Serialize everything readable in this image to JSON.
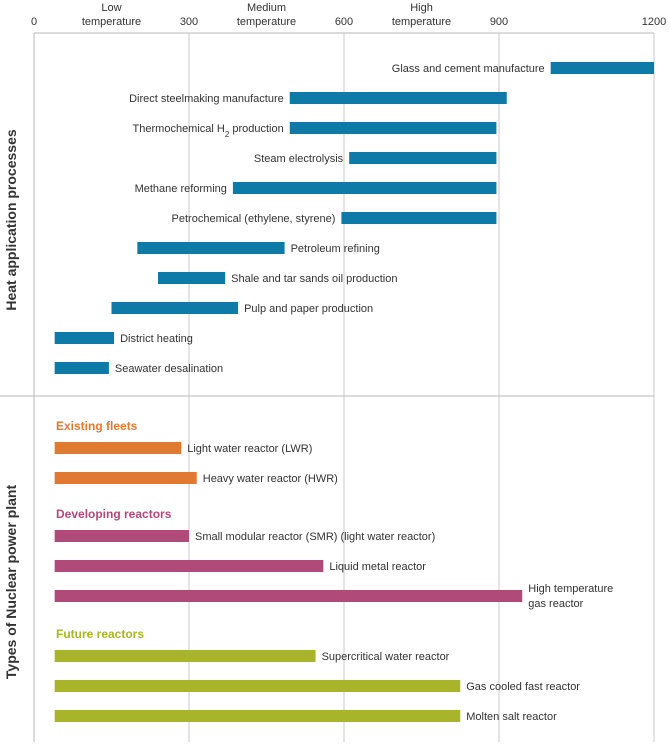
{
  "chart_data": {
    "type": "bar",
    "orientation": "horizontal-range",
    "x_ticks": [
      0,
      300,
      600,
      900,
      1200
    ],
    "xlim": [
      0,
      1200
    ],
    "temperature_bands": [
      {
        "label_line1": "Low",
        "label_line2": "temperature",
        "center": 150
      },
      {
        "label_line1": "Medium",
        "label_line2": "temperature",
        "center": 450
      },
      {
        "label_line1": "High",
        "label_line2": "temperature",
        "center": 750
      }
    ],
    "grid": true,
    "sections": [
      {
        "title": "Heat application processes",
        "groups": [
          {
            "name": "",
            "color": "#0E7AA8",
            "bars": [
              {
                "label": "Glass and cement manufacture",
                "start": 1000,
                "end": 1200
              },
              {
                "label": "Direct steelmaking manufacture",
                "start": 495,
                "end": 915
              },
              {
                "label": "Thermochemical H",
                "sub": "2",
                "label_tail": " production",
                "start": 495,
                "end": 895
              },
              {
                "label": "Steam electrolysis",
                "start": 610,
                "end": 895
              },
              {
                "label": "Methane reforming",
                "start": 385,
                "end": 895
              },
              {
                "label": "Petrochemical (ethylene, styrene)",
                "start": 595,
                "end": 895
              },
              {
                "label": "Petroleum refining",
                "start": 200,
                "end": 485
              },
              {
                "label": "Shale and tar sands oil production",
                "start": 240,
                "end": 370
              },
              {
                "label": "Pulp and paper production",
                "start": 150,
                "end": 395
              },
              {
                "label": "District heating",
                "start": 40,
                "end": 155
              },
              {
                "label": "Seawater desalination",
                "start": 40,
                "end": 145
              }
            ]
          }
        ]
      },
      {
        "title": "Types of Nuclear power plant",
        "groups": [
          {
            "name": "Existing fleets",
            "color": "#E07A33",
            "bars": [
              {
                "label": "Light water reactor (LWR)",
                "start": 40,
                "end": 285
              },
              {
                "label": "Heavy water reactor (HWR)",
                "start": 40,
                "end": 315
              }
            ]
          },
          {
            "name": "Developing reactors",
            "color": "#B04A79",
            "bars": [
              {
                "label": "Small modular reactor (SMR) (light water reactor)",
                "start": 40,
                "end": 300
              },
              {
                "label": "Liquid metal reactor",
                "start": 40,
                "end": 560
              },
              {
                "label": "High temperature",
                "label_line2": "gas reactor",
                "start": 40,
                "end": 945
              }
            ]
          },
          {
            "name": "Future reactors",
            "color": "#A8B42A",
            "bars": [
              {
                "label": "Supercritical water reactor",
                "start": 40,
                "end": 545
              },
              {
                "label": "Gas cooled fast reactor",
                "start": 40,
                "end": 825
              },
              {
                "label": "Molten salt reactor",
                "start": 40,
                "end": 825
              }
            ]
          }
        ]
      }
    ]
  }
}
